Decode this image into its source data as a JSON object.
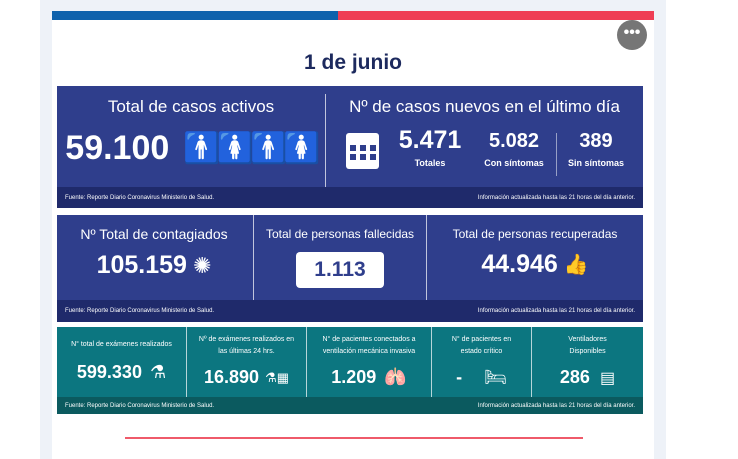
{
  "header": {
    "date": "1 de junio",
    "more_icon": "ellipsis-icon"
  },
  "colors": {
    "blue": "#0f62ac",
    "red": "#ef3e55",
    "navy": "#2f3e8c",
    "teal": "#0c7680"
  },
  "source": "Fuente: Reporte Diario Coronavirus Ministerio de Salud.",
  "updated": "Información actualizada hasta las 21 horas  del día anterior.",
  "active": {
    "label": "Total de casos activos",
    "value": "59.100"
  },
  "new_cases": {
    "label": "Nº de casos nuevos en el último día",
    "total": "5.471",
    "total_label": "Totales",
    "sympt": "5.082",
    "sympt_label": "Con síntomas",
    "asympt": "389",
    "asympt_label": "Sin síntomas"
  },
  "infected": {
    "label": "Nº Total de contagiados",
    "value": "105.159"
  },
  "deaths": {
    "label": "Total de personas fallecidas",
    "value": "1.113"
  },
  "recovered": {
    "label": "Total de personas recuperadas",
    "value": "44.946"
  },
  "exams_total": {
    "label": "N° total de exámenes realizados",
    "value": "599.330"
  },
  "exams_24": {
    "label": "Nº de exámenes realizados en las últimas 24 hrs.",
    "value": "16.890"
  },
  "ventilated": {
    "label": "N° de pacientes conectados a ventilación mecánica invasiva",
    "value": "1.209"
  },
  "critical": {
    "label": "N° de pacientes  en estado crítico",
    "value": "-"
  },
  "ventilators": {
    "label": "Ventiladores Disponibles",
    "value": "286"
  }
}
